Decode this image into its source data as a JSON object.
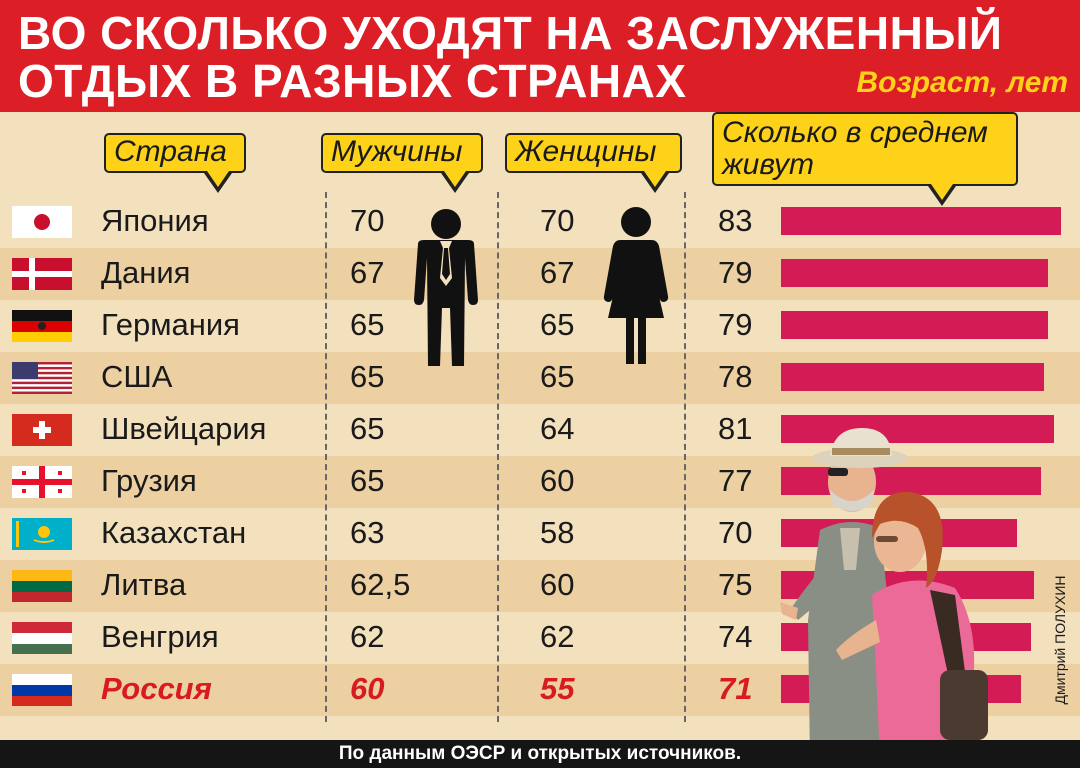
{
  "title": {
    "line1": "ВО СКОЛЬКО УХОДЯТ НА ЗАСЛУЖЕННЫЙ",
    "line2": "ОТДЫХ В РАЗНЫХ СТРАНАХ",
    "units": "Возраст, лет"
  },
  "columns": {
    "country": "Страна",
    "men": "Мужчины",
    "women": "Женщины",
    "life_line1": "Сколько в среднем",
    "life_line2": "живут"
  },
  "colors": {
    "header": "#dc1f26",
    "callout": "#ffd21a",
    "bar": "#d31b56",
    "highlight_text": "#d81a21"
  },
  "chart_data": {
    "type": "table",
    "columns": [
      "Страна",
      "Мужчины",
      "Женщины",
      "Сколько в среднем живут"
    ],
    "rows": [
      {
        "country": "Япония",
        "flag": "japan-flag",
        "men": "70",
        "women": "70",
        "life": "83",
        "life_value": 83
      },
      {
        "country": "Дания",
        "flag": "denmark-flag",
        "men": "67",
        "women": "67",
        "life": "79",
        "life_value": 79
      },
      {
        "country": "Германия",
        "flag": "germany-flag",
        "men": "65",
        "women": "65",
        "life": "79",
        "life_value": 79
      },
      {
        "country": "США",
        "flag": "usa-flag",
        "men": "65",
        "women": "65",
        "life": "78",
        "life_value": 78
      },
      {
        "country": "Швейцария",
        "flag": "switzerland-flag",
        "men": "65",
        "women": "64",
        "life": "81",
        "life_value": 81
      },
      {
        "country": "Грузия",
        "flag": "georgia-flag",
        "men": "65",
        "women": "60",
        "life": "77",
        "life_value": 77
      },
      {
        "country": "Казахстан",
        "flag": "kazakhstan-flag",
        "men": "63",
        "women": "58",
        "life": "70",
        "life_value": 70
      },
      {
        "country": "Литва",
        "flag": "lithuania-flag",
        "men": "62,5",
        "women": "60",
        "life": "75",
        "life_value": 75
      },
      {
        "country": "Венгрия",
        "flag": "hungary-flag",
        "men": "62",
        "women": "62",
        "life": "74",
        "life_value": 74
      },
      {
        "country": "Россия",
        "flag": "russia-flag",
        "men": "60",
        "women": "55",
        "life": "71",
        "life_value": 71,
        "highlight": true
      }
    ],
    "life_bar_range": [
      0,
      83
    ]
  },
  "icons": {
    "man": "man-icon",
    "woman": "woman-icon",
    "photo": "elderly-couple-photo"
  },
  "credit": "Дмитрий ПОЛУХИН",
  "footer": "По данным ОЭСР и открытых источников."
}
